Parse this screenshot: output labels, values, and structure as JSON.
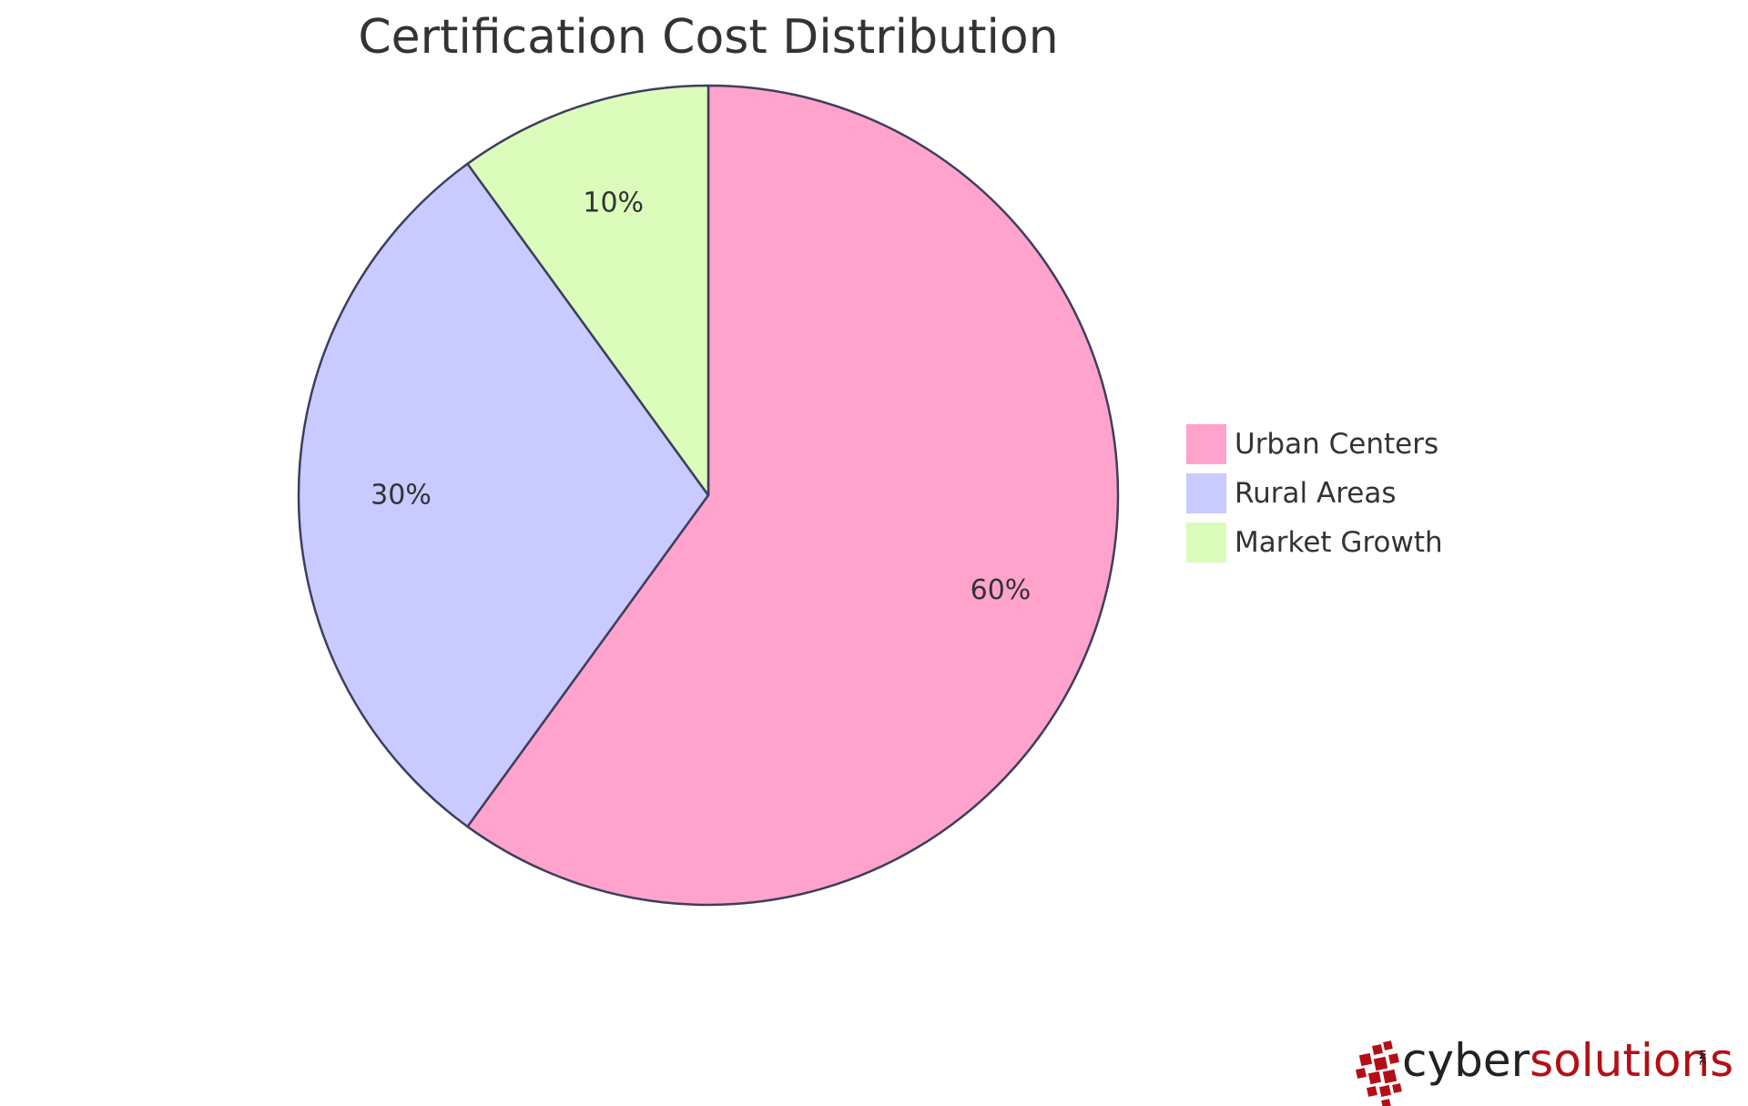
{
  "chart_data": {
    "type": "pie",
    "title": "Certification Cost Distribution",
    "slices": [
      {
        "name": "Urban Centers",
        "value": 60,
        "label": "60%",
        "color": "#ffa3cd"
      },
      {
        "name": "Rural Areas",
        "value": 30,
        "label": "30%",
        "color": "#c9caff"
      },
      {
        "name": "Market Growth",
        "value": 10,
        "label": "10%",
        "color": "#dbfcbb"
      }
    ],
    "start_angle_deg": 0,
    "direction": "clockwise",
    "stroke_color": "#3d3e5c",
    "legend": {
      "placement": "right"
    }
  },
  "logo": {
    "prefix": "cyber",
    "suffix": "solutions",
    "tag": "INC",
    "prefix_color": "#222222",
    "suffix_color": "#b30f16"
  }
}
